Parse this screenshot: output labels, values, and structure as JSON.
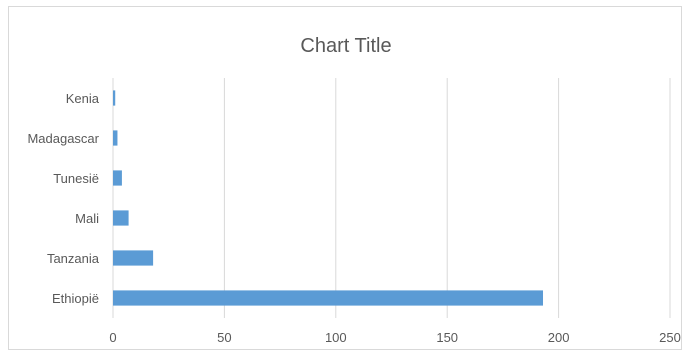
{
  "chart_data": {
    "type": "bar",
    "orientation": "horizontal",
    "title": "Chart Title",
    "categories": [
      "Kenia",
      "Madagascar",
      "Tunesië",
      "Mali",
      "Tanzania",
      "Ethiopië"
    ],
    "values": [
      1,
      2,
      4,
      7,
      18,
      193
    ],
    "xlim": [
      0,
      250
    ],
    "xticks": [
      0,
      50,
      100,
      150,
      200,
      250
    ],
    "xlabel": "",
    "ylabel": "",
    "grid": true,
    "legend": "none",
    "bar_color": "#5b9bd5",
    "grid_color": "#d9d9d9"
  }
}
